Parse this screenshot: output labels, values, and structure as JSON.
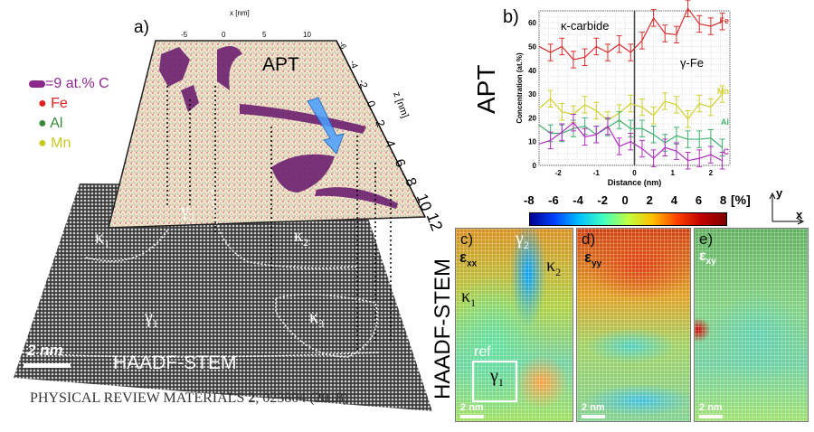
{
  "panel_a": {
    "label": "a)",
    "apt_label": "APT",
    "haadf_label": "HAADF-STEM",
    "scale_bar": "2 nm",
    "x_axis_label": "x [nm]",
    "x_ticks": [
      "-5",
      "0",
      "5",
      "10"
    ],
    "z_axis_label": "z [nm]",
    "z_ticks": [
      "-6",
      "-4",
      "-2",
      "0",
      "2",
      "4",
      "6",
      "8",
      "10",
      "12"
    ],
    "regions": {
      "gamma2": "γ",
      "gamma2_sub": "2",
      "kappa1": "κ",
      "kappa1_sub": "1",
      "kappa2": "κ",
      "kappa2_sub": "2",
      "gamma1": "γ",
      "gamma1_sub": "1",
      "kappa3": "κ",
      "kappa3_sub": "3"
    },
    "legend": [
      {
        "label": "=9 at.% C",
        "color": "#8b2a8b"
      },
      {
        "label": "Fe",
        "color": "#e02020"
      },
      {
        "label": "Al",
        "color": "#3a8a3a"
      },
      {
        "label": "Mn",
        "color": "#c8c820"
      }
    ]
  },
  "citation": {
    "journal": "PHYSICAL REVIEW MATERIALS ",
    "volume": "2",
    "rest": ", 023804 (2018)"
  },
  "side_labels": {
    "apt": "APT",
    "haadf": "HAADF-STEM"
  },
  "chart_data": {
    "type": "line",
    "label": "b)",
    "xlabel": "Distance (nm)",
    "ylabel": "Concentration (at.%)",
    "xlim": [
      -2.5,
      2.5
    ],
    "ylim": [
      0,
      65
    ],
    "x_ticks": [
      -2,
      -1,
      0,
      1,
      2
    ],
    "y_ticks": [
      0,
      10,
      20,
      30,
      40,
      50,
      60
    ],
    "grid": true,
    "annotations": [
      "κ-carbide",
      "γ-Fe"
    ],
    "x": [
      -2.5,
      -2.2,
      -1.9,
      -1.6,
      -1.3,
      -1.0,
      -0.7,
      -0.4,
      -0.1,
      0.2,
      0.5,
      0.8,
      1.1,
      1.4,
      1.7,
      2.0,
      2.3
    ],
    "series": [
      {
        "name": "Fe",
        "color": "#d83030",
        "values": [
          50,
          47.5,
          50,
          44.5,
          45.5,
          50,
          47.5,
          51,
          47.5,
          52.5,
          62,
          55.5,
          55,
          66,
          59.5,
          58.5,
          60.5
        ]
      },
      {
        "name": "Mn",
        "color": "#d0d030",
        "values": [
          24,
          28,
          22.5,
          21.5,
          25.5,
          23,
          19,
          22,
          26,
          24.5,
          21,
          27,
          25.5,
          19.5,
          26,
          24.5,
          30
        ]
      },
      {
        "name": "Al",
        "color": "#40b070",
        "values": [
          17,
          13.5,
          13.5,
          15.5,
          16.5,
          13,
          16,
          19,
          15.5,
          15.5,
          13,
          9.5,
          12.5,
          11,
          11,
          11.5,
          7.5
        ]
      },
      {
        "name": "C",
        "color": "#b030c0",
        "values": [
          9,
          10.5,
          14,
          18,
          12,
          13,
          16.5,
          8,
          10,
          7,
          3,
          7.5,
          6,
          2,
          3,
          4.5,
          2
        ]
      }
    ],
    "error": 3.5
  },
  "colorbar": {
    "ticks": [
      "-8",
      "-6",
      "-4",
      "-2",
      "0",
      "2",
      "4",
      "6",
      "8"
    ],
    "unit": "[%]",
    "range": [
      -8,
      8
    ],
    "axes": {
      "y": "y",
      "x": "x"
    }
  },
  "maps": [
    {
      "label": "c)",
      "strain": "ε",
      "sub": "xx",
      "extra": {
        "gamma2": "γ",
        "gamma2_sub": "2",
        "kappa2": "κ",
        "kappa2_sub": "2",
        "kappa1": "κ",
        "kappa1_sub": "1",
        "ref": "ref",
        "gamma1": "γ",
        "gamma1_sub": "1"
      },
      "scale": "2 nm"
    },
    {
      "label": "d)",
      "strain": "ε",
      "sub": "yy",
      "scale": "2 nm"
    },
    {
      "label": "e)",
      "strain": "ε",
      "sub": "xy",
      "scale": "2 nm"
    }
  ]
}
